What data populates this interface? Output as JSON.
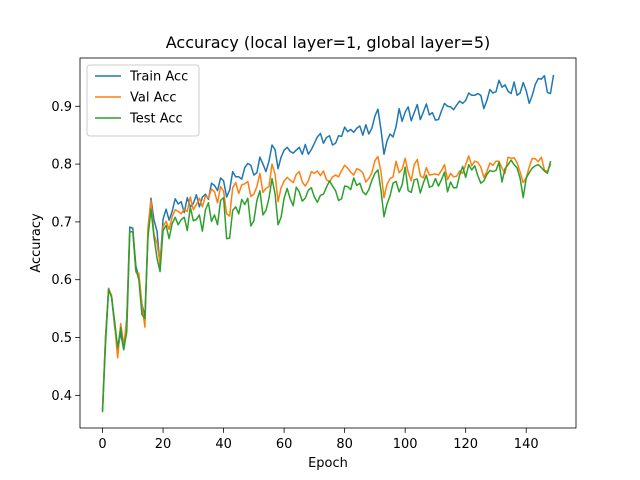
{
  "chart_data": {
    "type": "line",
    "title": "Accuracy (local layer=1, global layer=5)",
    "xlabel": "Epoch",
    "ylabel": "Accuracy",
    "xlim": [
      -7.45,
      156.45
    ],
    "ylim": [
      0.3435,
      0.9835
    ],
    "xticks": [
      0,
      20,
      40,
      60,
      80,
      100,
      120,
      140
    ],
    "yticks": [
      0.4,
      0.5,
      0.6,
      0.7,
      0.8,
      0.9
    ],
    "ytick_labels": [
      "0.4",
      "0.5",
      "0.6",
      "0.7",
      "0.8",
      "0.9"
    ],
    "legend_position": "upper left",
    "series": [
      {
        "name": "Train Acc",
        "color": "#1f77b4",
        "values": [
          0.376,
          0.503,
          0.585,
          0.57,
          0.519,
          0.478,
          0.508,
          0.479,
          0.533,
          0.691,
          0.689,
          0.624,
          0.604,
          0.558,
          0.537,
          0.677,
          0.741,
          0.703,
          0.684,
          0.625,
          0.705,
          0.722,
          0.703,
          0.718,
          0.74,
          0.731,
          0.735,
          0.716,
          0.742,
          0.726,
          0.732,
          0.747,
          0.726,
          0.743,
          0.748,
          0.739,
          0.767,
          0.763,
          0.754,
          0.776,
          0.771,
          0.743,
          0.755,
          0.787,
          0.778,
          0.778,
          0.774,
          0.794,
          0.801,
          0.798,
          0.781,
          0.785,
          0.812,
          0.8,
          0.787,
          0.805,
          0.833,
          0.825,
          0.792,
          0.812,
          0.824,
          0.829,
          0.822,
          0.819,
          0.824,
          0.829,
          0.817,
          0.834,
          0.817,
          0.825,
          0.836,
          0.847,
          0.853,
          0.836,
          0.846,
          0.849,
          0.833,
          0.836,
          0.849,
          0.848,
          0.864,
          0.856,
          0.86,
          0.855,
          0.862,
          0.866,
          0.85,
          0.868,
          0.852,
          0.862,
          0.883,
          0.895,
          0.86,
          0.817,
          0.84,
          0.852,
          0.847,
          0.865,
          0.896,
          0.874,
          0.89,
          0.899,
          0.875,
          0.889,
          0.903,
          0.877,
          0.89,
          0.904,
          0.885,
          0.889,
          0.876,
          0.877,
          0.892,
          0.905,
          0.9,
          0.899,
          0.894,
          0.902,
          0.909,
          0.905,
          0.91,
          0.923,
          0.919,
          0.919,
          0.922,
          0.919,
          0.896,
          0.91,
          0.929,
          0.923,
          0.925,
          0.945,
          0.933,
          0.937,
          0.926,
          0.922,
          0.942,
          0.919,
          0.923,
          0.941,
          0.927,
          0.905,
          0.919,
          0.938,
          0.948,
          0.947,
          0.953,
          0.924,
          0.922,
          0.953
        ]
      },
      {
        "name": "Val Acc",
        "color": "#ff7f0e",
        "values": [
          0.375,
          0.501,
          0.584,
          0.573,
          0.522,
          0.465,
          0.524,
          0.487,
          0.527,
          0.682,
          0.684,
          0.613,
          0.611,
          0.557,
          0.518,
          0.69,
          0.737,
          0.678,
          0.663,
          0.628,
          0.692,
          0.701,
          0.687,
          0.709,
          0.721,
          0.718,
          0.714,
          0.722,
          0.718,
          0.743,
          0.721,
          0.73,
          0.741,
          0.726,
          0.745,
          0.741,
          0.757,
          0.752,
          0.733,
          0.761,
          0.753,
          0.714,
          0.71,
          0.759,
          0.768,
          0.749,
          0.764,
          0.766,
          0.77,
          0.744,
          0.748,
          0.761,
          0.784,
          0.751,
          0.758,
          0.761,
          0.8,
          0.783,
          0.735,
          0.759,
          0.771,
          0.777,
          0.772,
          0.768,
          0.782,
          0.787,
          0.769,
          0.762,
          0.771,
          0.787,
          0.784,
          0.788,
          0.78,
          0.788,
          0.773,
          0.769,
          0.778,
          0.781,
          0.778,
          0.789,
          0.798,
          0.793,
          0.786,
          0.781,
          0.792,
          0.79,
          0.785,
          0.769,
          0.775,
          0.785,
          0.806,
          0.813,
          0.787,
          0.742,
          0.765,
          0.775,
          0.778,
          0.805,
          0.785,
          0.791,
          0.81,
          0.786,
          0.771,
          0.799,
          0.808,
          0.78,
          0.776,
          0.794,
          0.781,
          0.782,
          0.783,
          0.781,
          0.789,
          0.799,
          0.773,
          0.784,
          0.778,
          0.779,
          0.788,
          0.784,
          0.799,
          0.814,
          0.797,
          0.805,
          0.803,
          0.795,
          0.777,
          0.787,
          0.802,
          0.798,
          0.805,
          0.805,
          0.793,
          0.784,
          0.812,
          0.81,
          0.811,
          0.802,
          0.786,
          0.768,
          0.776,
          0.795,
          0.81,
          0.809,
          0.804,
          0.812,
          0.79,
          0.787,
          0.799
        ]
      },
      {
        "name": "Test Acc",
        "color": "#2ca02c",
        "values": [
          0.372,
          0.49,
          0.583,
          0.569,
          0.528,
          0.482,
          0.517,
          0.479,
          0.51,
          0.683,
          0.683,
          0.618,
          0.6,
          0.54,
          0.533,
          0.673,
          0.722,
          0.674,
          0.637,
          0.614,
          0.685,
          0.694,
          0.671,
          0.697,
          0.708,
          0.695,
          0.704,
          0.708,
          0.685,
          0.726,
          0.702,
          0.704,
          0.712,
          0.684,
          0.721,
          0.733,
          0.701,
          0.712,
          0.695,
          0.737,
          0.742,
          0.671,
          0.672,
          0.72,
          0.726,
          0.714,
          0.739,
          0.73,
          0.741,
          0.693,
          0.702,
          0.737,
          0.754,
          0.712,
          0.72,
          0.741,
          0.775,
          0.749,
          0.695,
          0.708,
          0.741,
          0.758,
          0.74,
          0.728,
          0.76,
          0.752,
          0.736,
          0.741,
          0.755,
          0.759,
          0.743,
          0.734,
          0.746,
          0.748,
          0.76,
          0.771,
          0.762,
          0.754,
          0.737,
          0.74,
          0.762,
          0.761,
          0.756,
          0.776,
          0.763,
          0.767,
          0.752,
          0.747,
          0.756,
          0.772,
          0.784,
          0.79,
          0.755,
          0.709,
          0.731,
          0.745,
          0.767,
          0.77,
          0.752,
          0.764,
          0.795,
          0.754,
          0.751,
          0.773,
          0.774,
          0.75,
          0.767,
          0.781,
          0.76,
          0.762,
          0.775,
          0.762,
          0.773,
          0.786,
          0.752,
          0.769,
          0.759,
          0.759,
          0.781,
          0.796,
          0.777,
          0.799,
          0.79,
          0.797,
          0.78,
          0.767,
          0.771,
          0.782,
          0.789,
          0.787,
          0.789,
          0.803,
          0.769,
          0.792,
          0.799,
          0.807,
          0.799,
          0.793,
          0.775,
          0.742,
          0.776,
          0.785,
          0.793,
          0.797,
          0.799,
          0.794,
          0.788,
          0.784,
          0.804
        ]
      }
    ]
  }
}
